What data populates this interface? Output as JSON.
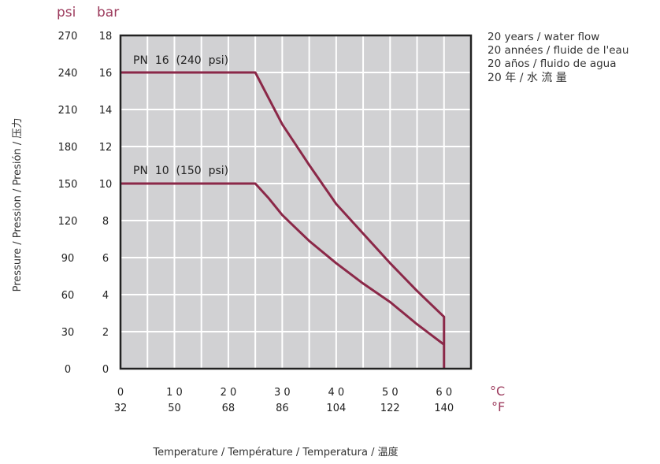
{
  "chart_data": {
    "type": "line",
    "ylabel": "Pressure / Pression / Presión / 压力",
    "xlabel": "Temperature / Température / Temperatura / 温度",
    "y_unit_psi": "psi",
    "y_unit_bar": "bar",
    "x_unit_c": "°C",
    "x_unit_f": "°F",
    "xlim": [
      0,
      65
    ],
    "ylim": [
      0,
      18
    ],
    "grid": true,
    "x_ticks_c": [
      "0",
      "1 0",
      "2 0",
      "3 0",
      "4 0",
      "5 0",
      "6 0"
    ],
    "x_ticks_f": [
      "32",
      "50",
      "68",
      "86",
      "104",
      "122",
      "140"
    ],
    "y_ticks_bar": [
      "0",
      "2",
      "4",
      "6",
      "8",
      "10",
      "12",
      "14",
      "16",
      "18"
    ],
    "y_ticks_psi": [
      "0",
      "30",
      "60",
      "90",
      "120",
      "150",
      "180",
      "210",
      "240",
      "270"
    ],
    "legend_note": [
      "20 years / water flow",
      "20 années / fluide de l'eau",
      "20 años / fluido de agua",
      "20 年 / 水 流 量"
    ],
    "colors": {
      "line": "#8b2848",
      "unit": "#9c3a5c",
      "plot_bg": "#d1d1d3",
      "grid": "#ffffff"
    },
    "series": [
      {
        "name": "PN  16  (240  psi)",
        "x": [
          0,
          25,
          27.5,
          30,
          35,
          40,
          45,
          50,
          55,
          60,
          60
        ],
        "y": [
          16,
          16,
          14.6,
          13.2,
          11,
          8.9,
          7.3,
          5.7,
          4.2,
          2.8,
          0
        ]
      },
      {
        "name": "PN  10  (150  psi)",
        "x": [
          0,
          25,
          27.5,
          30,
          35,
          40,
          45,
          50,
          55,
          60
        ],
        "y": [
          10,
          10,
          9.2,
          8.3,
          6.9,
          5.7,
          4.6,
          3.6,
          2.4,
          1.3
        ]
      }
    ]
  }
}
